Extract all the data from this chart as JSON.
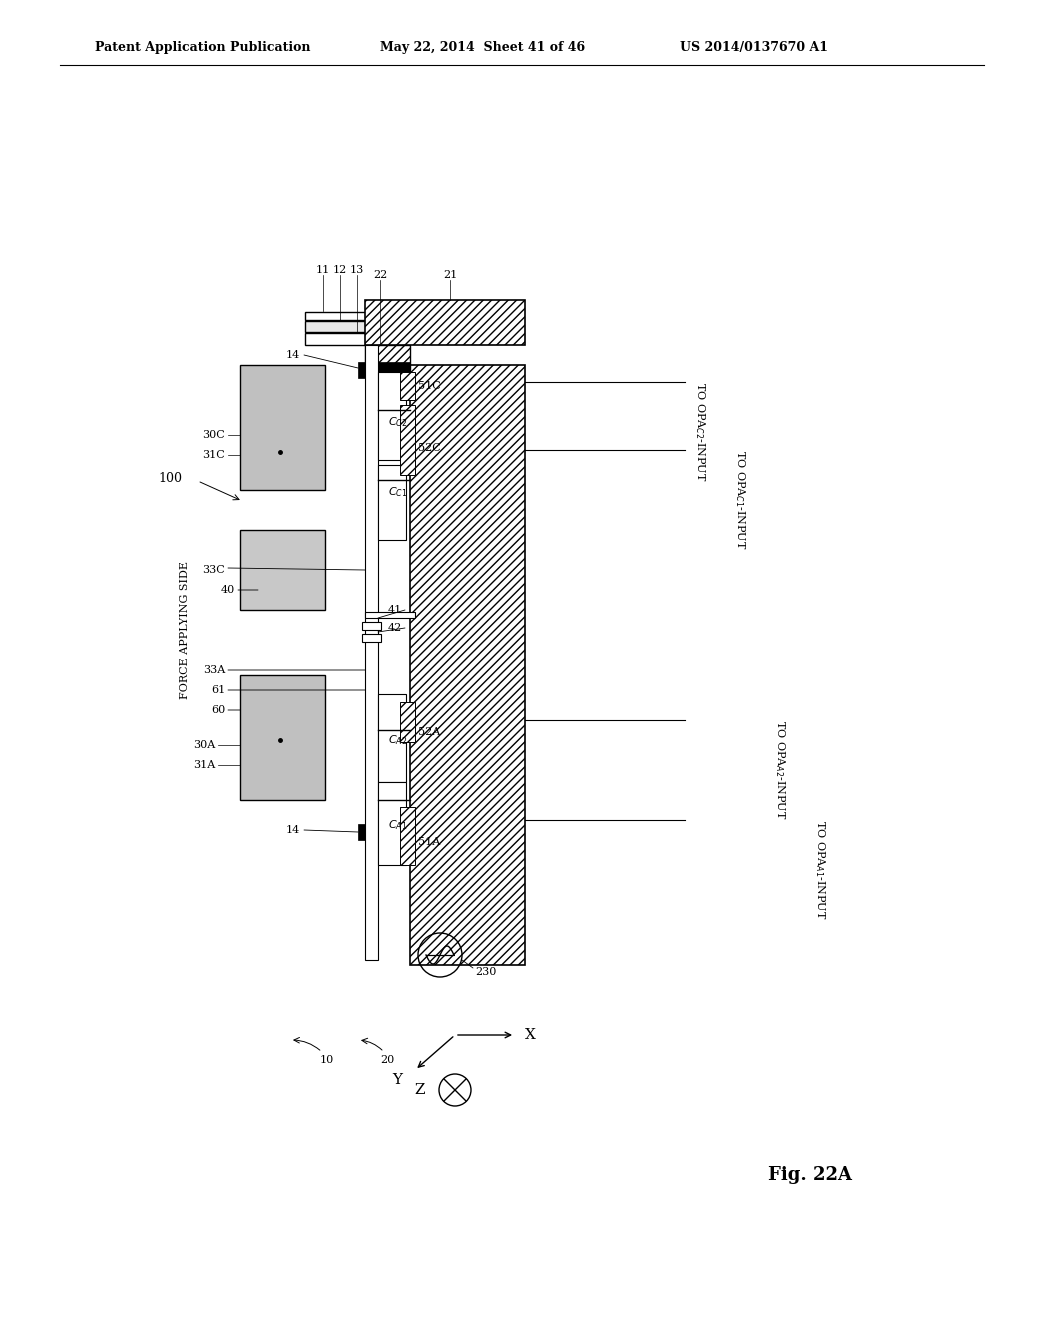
{
  "header_left": "Patent Application Publication",
  "header_mid": "May 22, 2014  Sheet 41 of 46",
  "header_right": "US 2014/0137670 A1",
  "fig_label": "Fig. 22A",
  "bg_color": "#ffffff"
}
